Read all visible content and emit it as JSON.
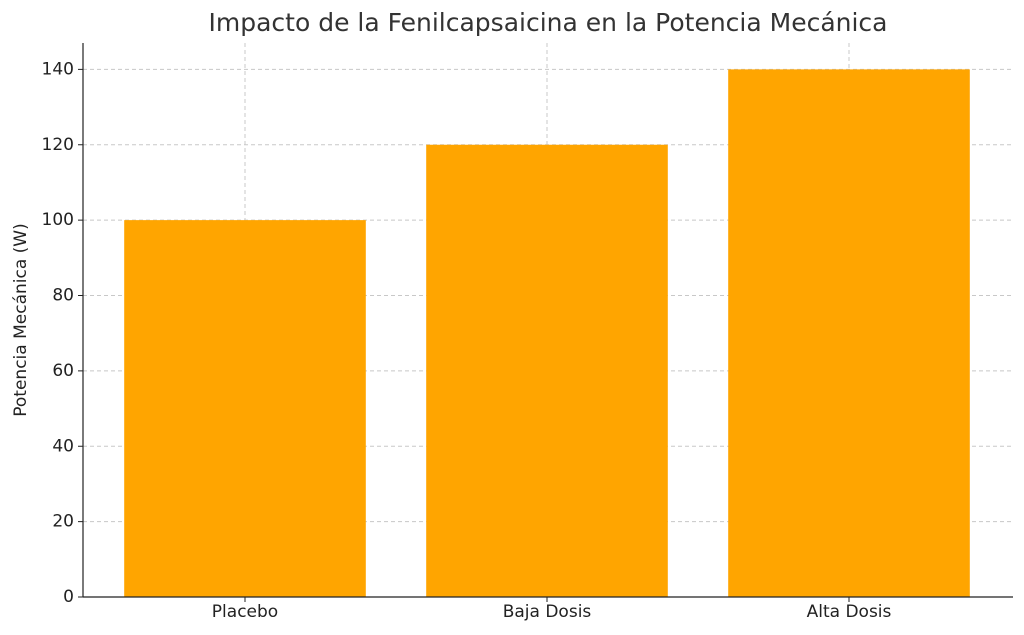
{
  "chart_data": {
    "type": "bar",
    "title": "Impacto de la Fenilcapsaicina en la Potencia Mecánica",
    "y_label": "Potencia Mecánica (W)",
    "categories": [
      "Placebo",
      "Baja Dosis",
      "Alta Dosis"
    ],
    "values": [
      100,
      120,
      140
    ],
    "color": "#ffa500",
    "ylim": [
      0,
      147
    ],
    "yticks": [
      0,
      20,
      40,
      60,
      80,
      100,
      120,
      140
    ],
    "grid": true
  }
}
